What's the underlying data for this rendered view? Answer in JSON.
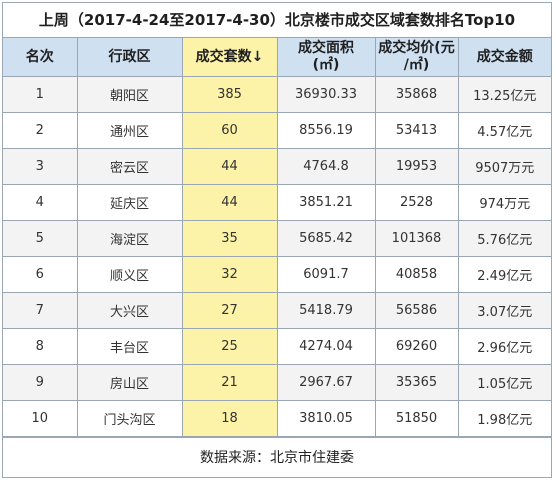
{
  "title": "上周（2017-4-24至2017-4-30）北京楼市成交区域套数排名Top10",
  "headers": {
    "rank": "名次",
    "district": "行政区",
    "units": "成交套数↓",
    "area": "成交面积\n(㎡)",
    "price": "成交均价(元\n/㎡)",
    "amount": "成交金额"
  },
  "rows": [
    {
      "rank": "1",
      "district": "朝阳区",
      "units": "385",
      "area": "36930.33",
      "price": "35868",
      "amount": "13.25亿元"
    },
    {
      "rank": "2",
      "district": "通州区",
      "units": "60",
      "area": "8556.19",
      "price": "53413",
      "amount": "4.57亿元"
    },
    {
      "rank": "3",
      "district": "密云区",
      "units": "44",
      "area": "4764.8",
      "price": "19953",
      "amount": "9507万元"
    },
    {
      "rank": "4",
      "district": "延庆区",
      "units": "44",
      "area": "3851.21",
      "price": "2528",
      "amount": "974万元"
    },
    {
      "rank": "5",
      "district": "海淀区",
      "units": "35",
      "area": "5685.42",
      "price": "101368",
      "amount": "5.76亿元"
    },
    {
      "rank": "6",
      "district": "顺义区",
      "units": "32",
      "area": "6091.7",
      "price": "40858",
      "amount": "2.49亿元"
    },
    {
      "rank": "7",
      "district": "大兴区",
      "units": "27",
      "area": "5418.79",
      "price": "56586",
      "amount": "3.07亿元"
    },
    {
      "rank": "8",
      "district": "丰台区",
      "units": "25",
      "area": "4274.04",
      "price": "69260",
      "amount": "2.96亿元"
    },
    {
      "rank": "9",
      "district": "房山区",
      "units": "21",
      "area": "2967.67",
      "price": "35365",
      "amount": "1.05亿元"
    },
    {
      "rank": "10",
      "district": "门头沟区",
      "units": "18",
      "area": "3810.05",
      "price": "51850",
      "amount": "1.98亿元"
    }
  ],
  "source": "数据来源：北京市住建委",
  "colors": {
    "header_bg": "#cfe0f0",
    "highlight": "#fcf3a8",
    "grid": "#9aa6b2"
  }
}
